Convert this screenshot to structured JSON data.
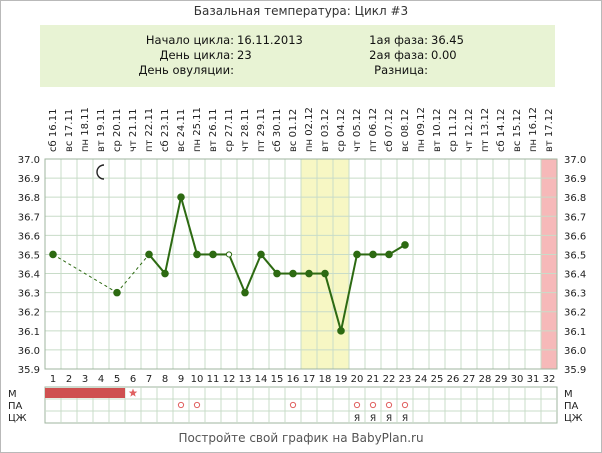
{
  "header": {
    "title": "Базальная температура: Цикл #3"
  },
  "info": {
    "cycle_start_label": "Начало цикла:",
    "cycle_start_value": "16.11.2013",
    "cycle_day_label": "День цикла:",
    "cycle_day_value": "23",
    "ovulation_day_label": "День овуляции:",
    "ovulation_day_value": "",
    "phase1_label": "1ая фаза:",
    "phase1_value": "36.45",
    "phase2_label": "2ая фаза:",
    "phase2_value": "0.00",
    "difference_label": "Разница:",
    "difference_value": ""
  },
  "footer": {
    "text": "Постройте свой график на BabyPlan.ru"
  },
  "colors": {
    "line": "#2d6a12",
    "point": "#2d6a12",
    "gap_line": "#2d6a12",
    "highlight": "#f7f7c4",
    "pink_column": "#f6b9b9",
    "menses": "#cf5050",
    "marker": "#e06060",
    "grid": "#c8dcc8"
  },
  "icons": {
    "moon_day": 4,
    "moon": "crescent-moon-icon",
    "star": "star-icon"
  },
  "chart_data": {
    "type": "line",
    "title": "",
    "xlabel": "",
    "ylabel": "",
    "ylim": [
      35.9,
      37.0
    ],
    "y_ticks": [
      "37.0",
      "36.9",
      "36.8",
      "36.7",
      "36.6",
      "36.5",
      "36.4",
      "36.3",
      "36.2",
      "36.1",
      "36.0",
      "35.9"
    ],
    "days": [
      1,
      2,
      3,
      4,
      5,
      6,
      7,
      8,
      9,
      10,
      11,
      12,
      13,
      14,
      15,
      16,
      17,
      18,
      19,
      20,
      21,
      22,
      23,
      24,
      25,
      26,
      27,
      28,
      29,
      30,
      31,
      32
    ],
    "weekdays": [
      "сб",
      "вс",
      "пн",
      "вт",
      "ср",
      "чт",
      "пт",
      "сб",
      "вс",
      "пн",
      "вт",
      "ср",
      "чт",
      "пт",
      "сб",
      "вс",
      "пн",
      "вт",
      "ср",
      "чт",
      "пт",
      "сб",
      "вс",
      "пн",
      "вт",
      "ср",
      "чт",
      "пт",
      "сб",
      "вс",
      "пн",
      "вт"
    ],
    "dates": [
      "16.11",
      "17.11",
      "18.11",
      "19.11",
      "20.11",
      "21.11",
      "22.11",
      "23.11",
      "24.11",
      "25.11",
      "26.11",
      "27.11",
      "28.11",
      "29.11",
      "30.11",
      "01.12",
      "02.12",
      "03.12",
      "04.12",
      "05.12",
      "06.12",
      "07.12",
      "08.12",
      "09.12",
      "10.12",
      "11.12",
      "12.12",
      "13.12",
      "14.12",
      "15.12",
      "16.12",
      "17.12"
    ],
    "temperature": [
      36.5,
      null,
      null,
      null,
      36.3,
      null,
      36.5,
      36.4,
      36.8,
      36.5,
      36.5,
      36.5,
      36.3,
      36.5,
      36.4,
      36.4,
      36.4,
      36.4,
      36.1,
      36.5,
      36.5,
      36.5,
      36.55,
      null,
      null,
      null,
      null,
      null,
      null,
      null,
      null,
      null
    ],
    "open_points": [
      12
    ],
    "highlight_days": [
      17,
      18,
      19
    ],
    "pink_day": 32,
    "rows": [
      {
        "label": "М",
        "menses_days": [
          1,
          2,
          3,
          4,
          5
        ],
        "star_days": [
          6
        ]
      },
      {
        "label": "ПА",
        "circle_days": [
          9,
          10,
          16,
          20,
          21,
          22,
          23
        ]
      },
      {
        "label": "ЦЖ",
        "letter": "Я",
        "letter_days": [
          20,
          21,
          22,
          23
        ]
      }
    ]
  }
}
